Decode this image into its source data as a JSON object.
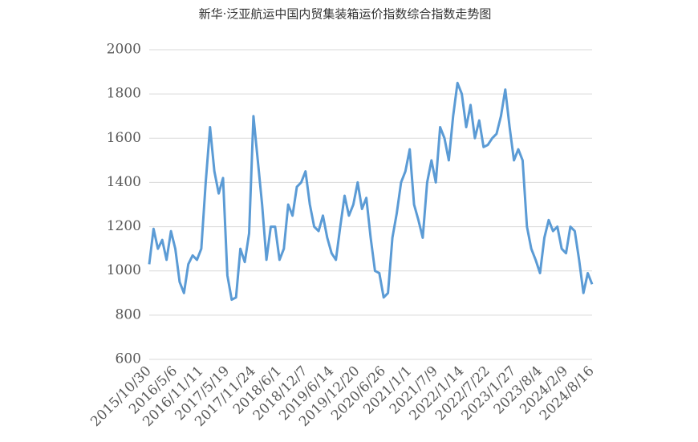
{
  "chart_data": {
    "type": "line",
    "title": "新华·泛亚航运中国内贸集装箱运价指数综合指数走势图",
    "categories": [
      "2015/10/30",
      null,
      null,
      null,
      null,
      null,
      "2016/5/6",
      null,
      null,
      null,
      null,
      null,
      "2016/11/11",
      null,
      null,
      null,
      null,
      null,
      "2017/5/19",
      null,
      null,
      null,
      null,
      null,
      "2017/11/24",
      null,
      null,
      null,
      null,
      null,
      "2018/6/1",
      null,
      null,
      null,
      null,
      null,
      "2018/12/7",
      null,
      null,
      null,
      null,
      null,
      "2019/6/14",
      null,
      null,
      null,
      null,
      null,
      "2019/12/20",
      null,
      null,
      null,
      null,
      null,
      "2020/6/26",
      null,
      null,
      null,
      null,
      null,
      "2021/1/1",
      null,
      null,
      null,
      null,
      null,
      "2021/7/9",
      null,
      null,
      null,
      null,
      null,
      "2022/1/14",
      null,
      null,
      null,
      null,
      null,
      "2022/7/22",
      null,
      null,
      null,
      null,
      null,
      "2023/1/27",
      null,
      null,
      null,
      null,
      null,
      "2023/8/4",
      null,
      null,
      null,
      null,
      null,
      "2024/2/9",
      null,
      null,
      null,
      null,
      null,
      "2024/8/16"
    ],
    "values": [
      1030,
      1190,
      1100,
      1140,
      1050,
      1180,
      1100,
      950,
      900,
      1030,
      1070,
      1050,
      1100,
      1400,
      1650,
      1450,
      1350,
      1420,
      980,
      870,
      880,
      1100,
      1040,
      1170,
      1700,
      1500,
      1300,
      1050,
      1200,
      1200,
      1050,
      1100,
      1300,
      1250,
      1380,
      1400,
      1450,
      1300,
      1200,
      1180,
      1250,
      1150,
      1080,
      1050,
      1200,
      1340,
      1250,
      1300,
      1400,
      1280,
      1330,
      1150,
      1000,
      990,
      880,
      900,
      1150,
      1260,
      1400,
      1450,
      1550,
      1300,
      1230,
      1150,
      1400,
      1500,
      1400,
      1650,
      1600,
      1500,
      1700,
      1850,
      1800,
      1650,
      1750,
      1600,
      1680,
      1560,
      1570,
      1600,
      1620,
      1700,
      1820,
      1650,
      1500,
      1550,
      1500,
      1200,
      1100,
      1050,
      990,
      1150,
      1230,
      1180,
      1200,
      1100,
      1080,
      1200,
      1180,
      1050,
      900,
      990,
      940
    ],
    "color": "#5b9bd5",
    "ylim": [
      600,
      2000
    ],
    "yticks": [
      600,
      800,
      1000,
      1200,
      1400,
      1600,
      1800,
      2000
    ],
    "grid": true
  }
}
